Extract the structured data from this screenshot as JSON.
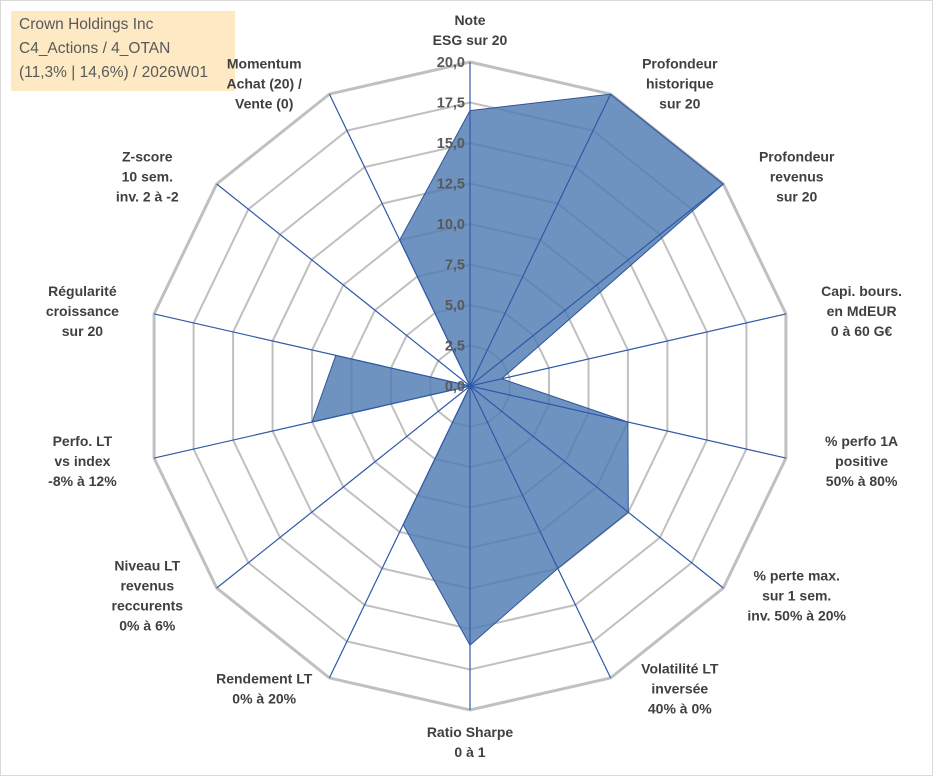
{
  "title_box": {
    "line1": "Crown Holdings Inc",
    "line2": "C4_Actions / 4_OTAN",
    "line3": "(11,3% | 14,6%) / 2026W01"
  },
  "chart_data": {
    "type": "radar",
    "r_range": [
      0,
      20
    ],
    "r_ticks": [
      "0,0",
      "2,5",
      "5,0",
      "7,5",
      "10,0",
      "12,5",
      "15,0",
      "17,5",
      "20,0"
    ],
    "grid": true,
    "axes": [
      {
        "label": [
          "Note",
          "ESG sur 20"
        ]
      },
      {
        "label": [
          "Profondeur",
          "historique",
          "sur 20"
        ]
      },
      {
        "label": [
          "Profondeur",
          "revenus",
          "sur 20"
        ]
      },
      {
        "label": [
          "Capi. bours.",
          "en MdEUR",
          "0 à 60 G€"
        ]
      },
      {
        "label": [
          "% perfo 1A",
          "positive",
          "50% à 80%"
        ]
      },
      {
        "label": [
          "% perte max.",
          "sur 1 sem.",
          "inv. 50% à 20%"
        ]
      },
      {
        "label": [
          "Volatilité LT",
          "inversée",
          "40% à 0%"
        ]
      },
      {
        "label": [
          "Ratio Sharpe",
          "0 à 1"
        ]
      },
      {
        "label": [
          "Rendement LT",
          "0% à 20%"
        ]
      },
      {
        "label": [
          "Niveau LT",
          "revenus",
          "reccurents",
          "0% à 6%"
        ]
      },
      {
        "label": [
          "Perfo. LT",
          "vs index",
          "-8% à 12%"
        ]
      },
      {
        "label": [
          "Régularité",
          "croissance",
          "sur 20"
        ]
      },
      {
        "label": [
          "Z-score",
          "10 sem.",
          "inv. 2 à -2"
        ]
      },
      {
        "label": [
          "Momentum",
          "Achat (20) /",
          "Vente (0)"
        ]
      }
    ],
    "series": [
      {
        "name": "Crown Holdings Inc",
        "values": [
          17.0,
          20.0,
          20.0,
          2.0,
          10.0,
          12.5,
          12.5,
          16.0,
          9.5,
          0.0,
          10.0,
          8.5,
          0.0,
          10.0
        ],
        "fill": "#4f7bb3",
        "stroke": "#2f5597"
      }
    ],
    "colors": {
      "grid": "#c0c0c0",
      "spoke": "#2e59a8"
    }
  }
}
